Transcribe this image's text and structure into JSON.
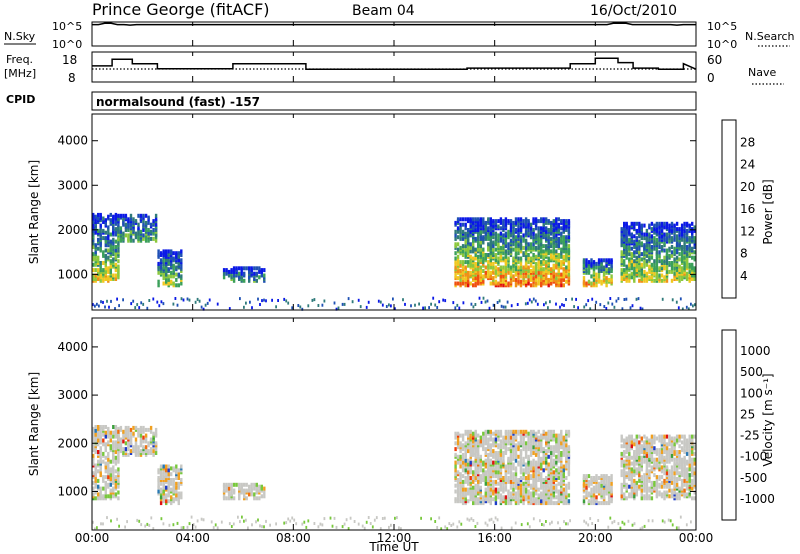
{
  "header": {
    "station": "Prince George (fitACF)",
    "beam": "Beam 04",
    "date": "16/Oct/2010"
  },
  "chart_data": [
    {
      "type": "line",
      "panel": "n-sky",
      "left_label": "N.Sky",
      "right_label": "N.Search",
      "left_ticks": [
        "10^5",
        "10^0"
      ],
      "right_ticks": [
        "10^5",
        "10^0"
      ],
      "series": [
        {
          "values": [
            4.9,
            4.9,
            5.2,
            5.2,
            4.9,
            4.9,
            4.8,
            4.9,
            4.9,
            4.9,
            4.9,
            4.9,
            4.9,
            4.9,
            4.9,
            4.9,
            4.9,
            4.9,
            4.9,
            4.9,
            4.9,
            4.9,
            4.9,
            4.9,
            4.9,
            4.9,
            4.9,
            4.9,
            4.9,
            4.9,
            4.9,
            4.9,
            4.9,
            4.9,
            4.9,
            4.9,
            4.9,
            4.9,
            4.9,
            4.9,
            4.9,
            4.9,
            4.9,
            4.9,
            4.9,
            4.9,
            4.9,
            4.9,
            4.9,
            4.9,
            4.9,
            4.9,
            4.9,
            4.9,
            4.9,
            4.9,
            4.9,
            4.9,
            4.9,
            4.9,
            4.9,
            4.9,
            4.9,
            4.9,
            4.9,
            4.9,
            4.9,
            4.9,
            4.9,
            4.9,
            4.9,
            4.9,
            4.9,
            4.9,
            4.9,
            4.9,
            4.9,
            4.9,
            4.9,
            4.9,
            4.9,
            4.9,
            5.2,
            5.2,
            5.2,
            4.9,
            4.9,
            4.9,
            4.9,
            4.9,
            4.9,
            4.9,
            4.8,
            4.9,
            4.9,
            4.9
          ]
        }
      ]
    },
    {
      "type": "line",
      "panel": "frequency",
      "left_label": "Freq.",
      "left_unit": "[MHz]",
      "right_label": "Nave",
      "left_ticks": [
        "18",
        "8"
      ],
      "right_ticks": [
        "60",
        "0"
      ],
      "x_hours": [
        0,
        0.8,
        0.8,
        1.6,
        1.6,
        2.6,
        2.6,
        5.6,
        5.6,
        8.5,
        8.5,
        14.9,
        14.9,
        19.0,
        19.0,
        20.0,
        20.0,
        20.9,
        20.9,
        21.5,
        21.5,
        22.5,
        22.5,
        23.5,
        23.5,
        24.0
      ],
      "freq_mhz": [
        13.5,
        13.5,
        16.5,
        16.5,
        14.5,
        14.5,
        12.2,
        12.2,
        14.5,
        14.5,
        12.0,
        12.0,
        12.5,
        12.5,
        14.5,
        14.5,
        17.0,
        17.0,
        15.0,
        15.0,
        12.5,
        12.5,
        12.0,
        12.0,
        14.5,
        12.0
      ],
      "nave_level": 30
    },
    {
      "type": "heatmap",
      "panel": "power",
      "cpid_label": "CPID",
      "program": "normalsound (fast) -157",
      "ylabel": "Slant Range [km]",
      "y_ticks": [
        "1000",
        "2000",
        "3000",
        "4000"
      ],
      "ylim": [
        200,
        4600
      ],
      "colorbar_label": "Power [dB]",
      "colorbar_ticks": [
        "4",
        "8",
        "12",
        "16",
        "20",
        "24",
        "28"
      ],
      "colors": [
        "#0a18e6",
        "#1e50b4",
        "#2f7a7a",
        "#3ba05a",
        "#8cc83c",
        "#f0c820",
        "#f09018",
        "#f05010",
        "#e01010"
      ],
      "regions": [
        {
          "x": [
            0.0,
            1.0
          ],
          "y": [
            900,
            2400
          ],
          "level": 0.6
        },
        {
          "x": [
            1.0,
            2.6
          ],
          "y": [
            1800,
            2400
          ],
          "level": 0.4
        },
        {
          "x": [
            2.6,
            3.6
          ],
          "y": [
            800,
            1600
          ],
          "level": 0.5
        },
        {
          "x": [
            5.2,
            6.8
          ],
          "y": [
            900,
            1200
          ],
          "level": 0.35
        },
        {
          "x": [
            14.4,
            19.0
          ],
          "y": [
            800,
            2300
          ],
          "level": 0.8
        },
        {
          "x": [
            19.5,
            20.7
          ],
          "y": [
            800,
            1400
          ],
          "level": 0.75
        },
        {
          "x": [
            21.0,
            24.0
          ],
          "y": [
            900,
            2200
          ],
          "level": 0.6
        }
      ]
    },
    {
      "type": "heatmap",
      "panel": "velocity",
      "ylabel": "Slant Range [km]",
      "y_ticks": [
        "1000",
        "2000",
        "3000",
        "4000"
      ],
      "ylim": [
        200,
        4600
      ],
      "colorbar_label": "Velocity [m s⁻¹]",
      "colorbar_ticks": [
        "1000",
        "500",
        "100",
        "25",
        "-25",
        "-100",
        "-500",
        "-1000"
      ],
      "colors": [
        "#1e3cc8",
        "#2878b4",
        "#3ca03c",
        "#78c83c",
        "#c8c8c4",
        "#f0a020",
        "#f07010",
        "#f03c0a",
        "#e01010"
      ],
      "xlabel": "Time UT",
      "x_ticks": [
        "00:00",
        "04:00",
        "08:00",
        "12:00",
        "16:00",
        "20:00",
        "00:00"
      ],
      "xlim": [
        0,
        24
      ]
    }
  ]
}
